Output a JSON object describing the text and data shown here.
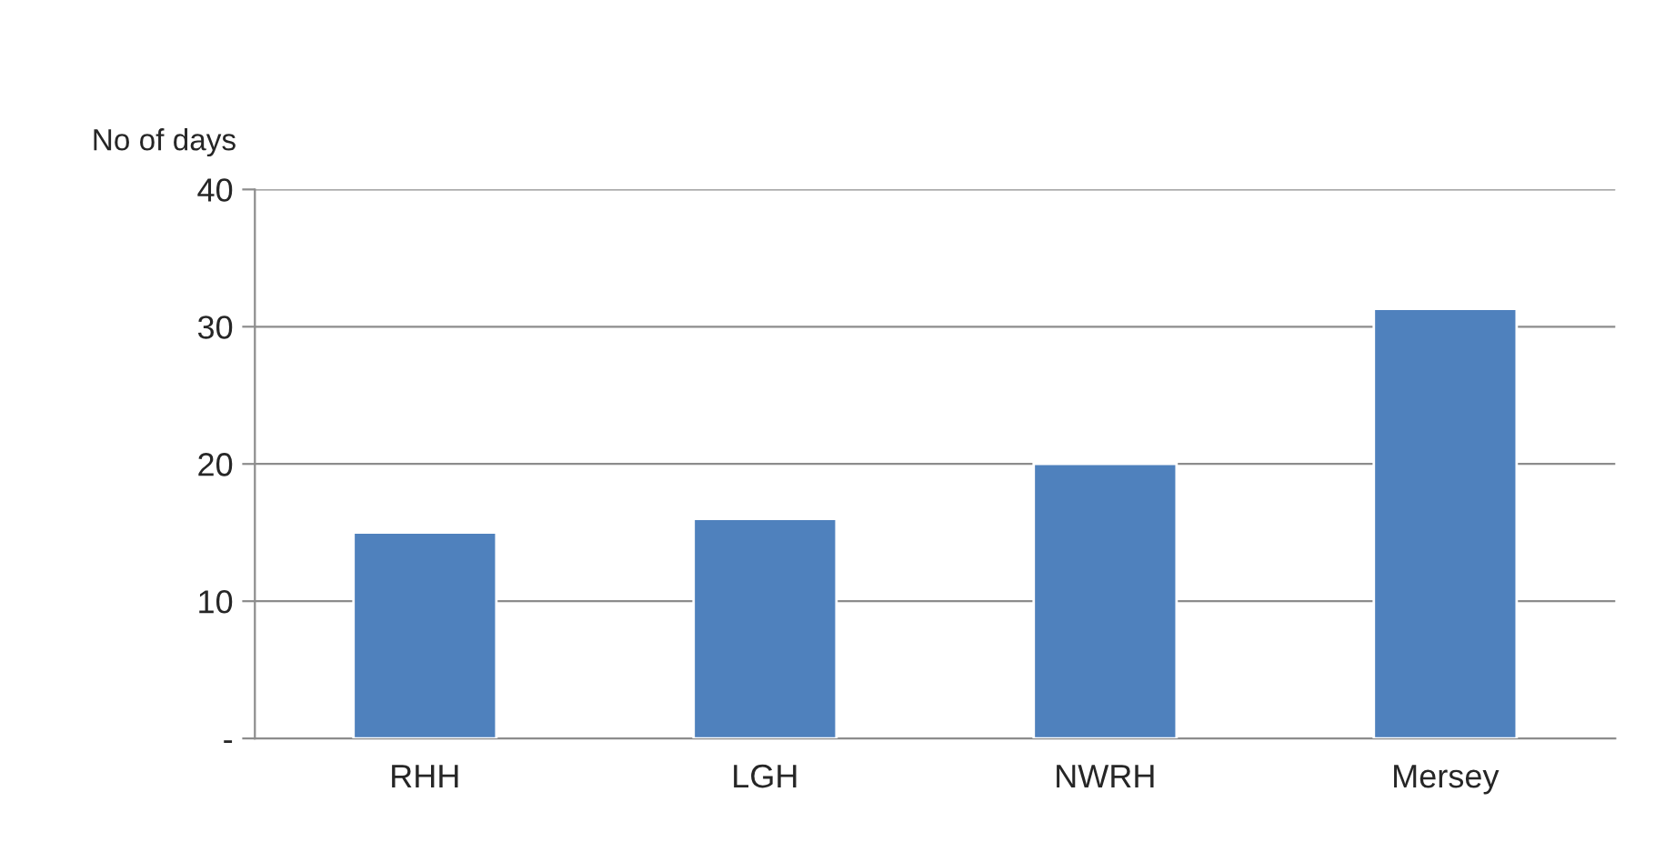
{
  "chart_data": {
    "type": "bar",
    "ylabel": "No of days",
    "categories": [
      "RHH",
      "LGH",
      "NWRH",
      "Mersey"
    ],
    "values": [
      15,
      16,
      20,
      31.3
    ],
    "color": "#4f81bd",
    "ylim": [
      0,
      40
    ],
    "yticks": [
      {
        "value": 0,
        "label": "-"
      },
      10,
      20,
      30,
      40
    ],
    "grid": "y"
  }
}
